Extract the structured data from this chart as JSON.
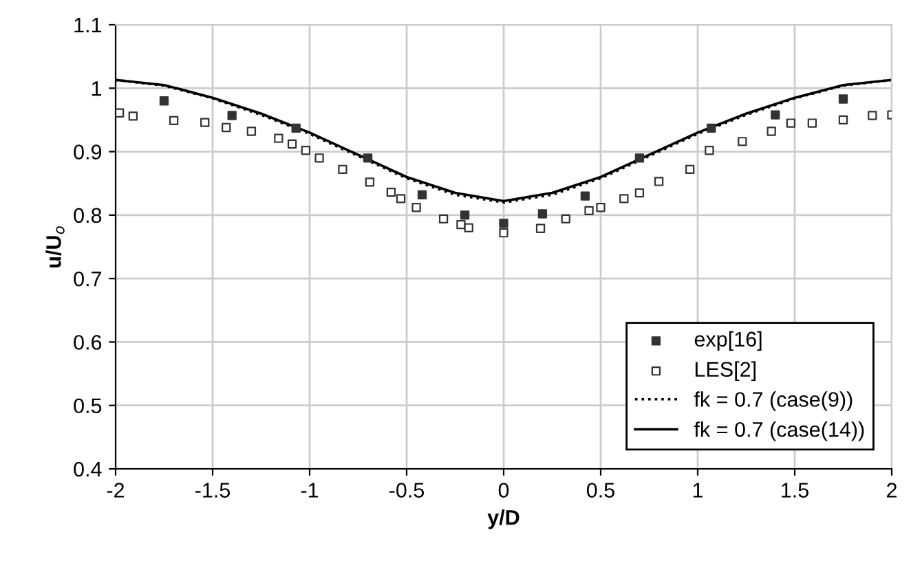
{
  "chart_data": {
    "type": "scatter",
    "xlabel": "y/D",
    "ylabel": "u/U$_{o}$",
    "xlim": [
      -2,
      2
    ],
    "ylim": [
      0.4,
      1.1
    ],
    "xticks": [
      -2,
      -1.5,
      -1,
      -0.5,
      0,
      0.5,
      1,
      1.5,
      2
    ],
    "yticks": [
      0.4,
      0.5,
      0.6,
      0.7,
      0.8,
      0.9,
      1,
      1.1
    ],
    "grid": true,
    "legend": "bottom right",
    "series": [
      {
        "name": "exp[16]",
        "marker": "square",
        "color": "#333333",
        "x": [
          -1.75,
          -1.4,
          -1.07,
          -0.7,
          -0.42,
          -0.2,
          0,
          0.2,
          0.42,
          0.7,
          1.07,
          1.4,
          1.75
        ],
        "values": [
          0.98,
          0.957,
          0.937,
          0.89,
          0.832,
          0.8,
          0.787,
          0.802,
          0.83,
          0.89,
          0.937,
          0.958,
          0.983
        ]
      },
      {
        "name": "LES[2]",
        "marker": "square",
        "color": "#333333",
        "x": [
          -1.98,
          -1.91,
          -1.7,
          -1.54,
          -1.43,
          -1.3,
          -1.16,
          -1.09,
          -1.02,
          -0.95,
          -0.83,
          -0.69,
          -0.58,
          -0.53,
          -0.45,
          -0.31,
          -0.22,
          -0.18,
          0,
          0.19,
          0.32,
          0.44,
          0.5,
          0.62,
          0.7,
          0.8,
          0.96,
          1.06,
          1.23,
          1.38,
          1.48,
          1.59,
          1.75,
          1.9,
          2.0
        ],
        "values": [
          0.961,
          0.956,
          0.949,
          0.946,
          0.938,
          0.932,
          0.921,
          0.912,
          0.902,
          0.89,
          0.872,
          0.852,
          0.836,
          0.826,
          0.812,
          0.794,
          0.785,
          0.78,
          0.772,
          0.779,
          0.794,
          0.807,
          0.812,
          0.826,
          0.835,
          0.853,
          0.872,
          0.902,
          0.916,
          0.932,
          0.945,
          0.945,
          0.95,
          0.957,
          0.958
        ]
      },
      {
        "name": "fk = 0.7 (case(9))",
        "type": "line",
        "line_style": "dotted",
        "color": "#000000",
        "x": [
          -2,
          -1.75,
          -1.5,
          -1.25,
          -1,
          -0.75,
          -0.5,
          -0.25,
          0,
          0.25,
          0.5,
          0.75,
          1,
          1.25,
          1.5,
          1.75,
          2
        ],
        "values": [
          1.013,
          1.004,
          0.984,
          0.958,
          0.928,
          0.893,
          0.858,
          0.832,
          0.82,
          0.832,
          0.858,
          0.893,
          0.928,
          0.958,
          0.984,
          1.004,
          1.013
        ]
      },
      {
        "name": "fk = 0.7 (case(14))",
        "type": "line",
        "line_style": "solid",
        "color": "#000000",
        "x": [
          -2,
          -1.75,
          -1.5,
          -1.25,
          -1,
          -0.75,
          -0.5,
          -0.25,
          0,
          0.25,
          0.5,
          0.75,
          1,
          1.25,
          1.5,
          1.75,
          2
        ],
        "values": [
          1.013,
          1.005,
          0.985,
          0.96,
          0.93,
          0.895,
          0.86,
          0.835,
          0.822,
          0.835,
          0.86,
          0.895,
          0.93,
          0.96,
          0.985,
          1.005,
          1.013
        ]
      }
    ]
  }
}
